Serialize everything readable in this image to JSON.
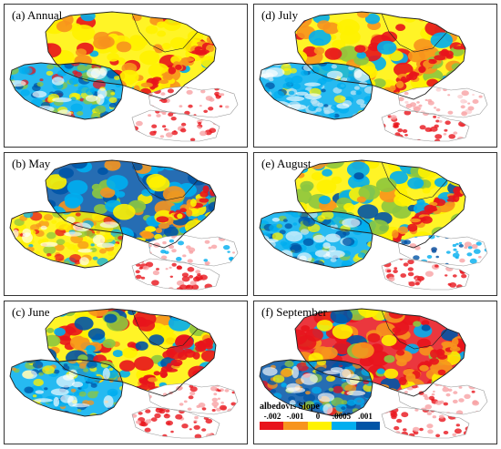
{
  "panels": [
    {
      "label": "(a) Annual",
      "scheme": "annual"
    },
    {
      "label": "(b) May",
      "scheme": "may"
    },
    {
      "label": "(c) June",
      "scheme": "june"
    },
    {
      "label": "(d) July",
      "scheme": "july"
    },
    {
      "label": "(e) August",
      "scheme": "august"
    },
    {
      "label": "(f) September",
      "scheme": "september"
    }
  ],
  "legend": {
    "title": "albedo",
    "title_sub": "VIS",
    "title_suffix": " Slope",
    "ticks": [
      "-.002",
      "-.001",
      "0",
      ".0005",
      ".001"
    ],
    "colors": [
      "#e8141c",
      "#f7941d",
      "#fff200",
      "#00aeef",
      "#0054a6"
    ]
  },
  "palette": {
    "red": "#e8141c",
    "orange": "#f7941d",
    "yellow": "#fff200",
    "cyan": "#00aeef",
    "blue": "#0054a6",
    "green": "#8dc63f"
  }
}
